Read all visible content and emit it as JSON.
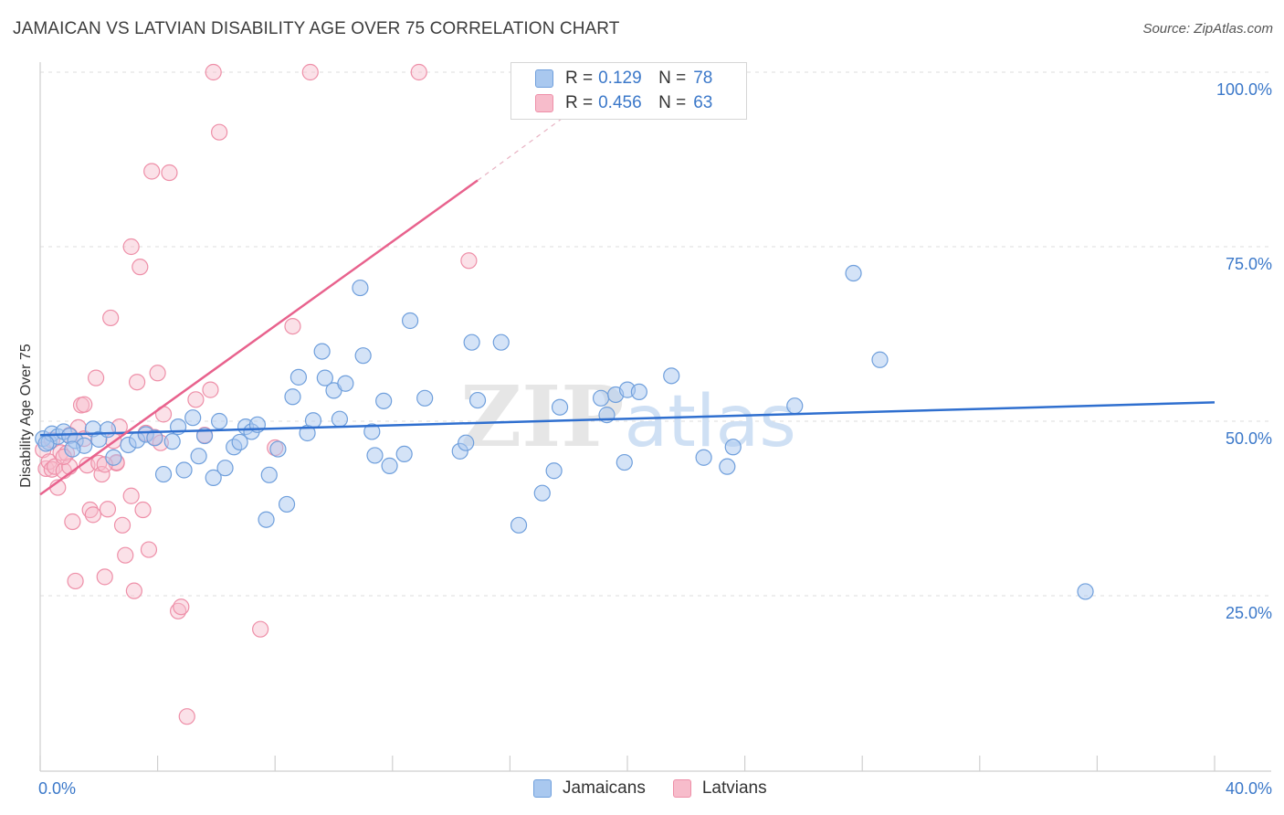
{
  "title": "JAMAICAN VS LATVIAN DISABILITY AGE OVER 75 CORRELATION CHART",
  "source": "Source: ZipAtlas.com",
  "watermark": "ZIPatlas",
  "legend": {
    "rows": [
      {
        "r_label": "R =",
        "r_value": "0.129",
        "n_label": "N =",
        "n_value": "78"
      },
      {
        "r_label": "R =",
        "r_value": "0.456",
        "n_label": "N =",
        "n_value": "63"
      }
    ]
  },
  "bottom_legend": [
    "Jamaicans",
    "Latvians"
  ],
  "colors": {
    "jamaicans_fill": "#a9c8ef",
    "jamaicans_stroke": "#6f9fdc",
    "jamaicans_line": "#2f6fcf",
    "latvians_fill": "#f7bccb",
    "latvians_stroke": "#ee8fa8",
    "latvians_line": "#e8628d",
    "tick_label": "#3b78c9",
    "grid": "#dcdcdc"
  },
  "chart_data": {
    "type": "scatter",
    "title": "JAMAICAN VS LATVIAN DISABILITY AGE OVER 75 CORRELATION CHART",
    "xlabel": "",
    "ylabel": "Disability Age Over 75",
    "xlim": [
      0,
      40
    ],
    "ylim": [
      0,
      105
    ],
    "x_tick_labels": [
      "0.0%",
      "40.0%"
    ],
    "y_ticks": [
      25,
      50,
      75,
      100
    ],
    "y_tick_labels": [
      "25.0%",
      "50.0%",
      "75.0%",
      "100.0%"
    ],
    "grid": true,
    "legend_position": "top-center",
    "series": [
      {
        "name": "Jamaicans",
        "r": 0.129,
        "n": 78,
        "trend": {
          "x": [
            0,
            40
          ],
          "y": [
            48.0,
            52.7
          ]
        },
        "points": [
          [
            0.1,
            47.5
          ],
          [
            0.3,
            47.0
          ],
          [
            0.4,
            48.2
          ],
          [
            0.6,
            47.8
          ],
          [
            0.8,
            48.5
          ],
          [
            1.0,
            47.9
          ],
          [
            1.2,
            47.2
          ],
          [
            1.5,
            46.5
          ],
          [
            1.8,
            48.9
          ],
          [
            2.0,
            47.4
          ],
          [
            2.3,
            48.8
          ],
          [
            2.5,
            44.8
          ],
          [
            3.0,
            46.6
          ],
          [
            3.3,
            47.3
          ],
          [
            3.6,
            48.1
          ],
          [
            3.9,
            47.6
          ],
          [
            4.2,
            42.4
          ],
          [
            4.5,
            47.1
          ],
          [
            4.7,
            49.2
          ],
          [
            4.9,
            43.0
          ],
          [
            5.2,
            50.5
          ],
          [
            5.4,
            45.0
          ],
          [
            5.6,
            47.9
          ],
          [
            5.9,
            41.9
          ],
          [
            6.1,
            50.0
          ],
          [
            6.3,
            43.3
          ],
          [
            6.6,
            46.3
          ],
          [
            6.8,
            47.0
          ],
          [
            7.0,
            49.2
          ],
          [
            7.2,
            48.5
          ],
          [
            7.4,
            49.5
          ],
          [
            7.7,
            35.9
          ],
          [
            7.8,
            42.3
          ],
          [
            8.1,
            46.0
          ],
          [
            8.4,
            38.1
          ],
          [
            8.6,
            53.5
          ],
          [
            8.8,
            56.3
          ],
          [
            9.1,
            48.3
          ],
          [
            9.3,
            50.1
          ],
          [
            9.6,
            60.0
          ],
          [
            9.7,
            56.2
          ],
          [
            10.0,
            54.4
          ],
          [
            10.2,
            50.3
          ],
          [
            10.4,
            55.4
          ],
          [
            10.9,
            69.1
          ],
          [
            11.0,
            59.4
          ],
          [
            11.3,
            48.5
          ],
          [
            11.4,
            45.1
          ],
          [
            11.7,
            52.9
          ],
          [
            11.9,
            43.6
          ],
          [
            12.4,
            45.3
          ],
          [
            12.6,
            64.4
          ],
          [
            13.1,
            53.3
          ],
          [
            14.3,
            45.7
          ],
          [
            14.5,
            46.9
          ],
          [
            14.7,
            61.3
          ],
          [
            14.9,
            53.0
          ],
          [
            15.7,
            61.3
          ],
          [
            16.3,
            35.1
          ],
          [
            17.1,
            39.7
          ],
          [
            17.5,
            42.9
          ],
          [
            17.7,
            52.0
          ],
          [
            19.1,
            53.3
          ],
          [
            19.3,
            50.9
          ],
          [
            19.6,
            53.8
          ],
          [
            19.9,
            44.1
          ],
          [
            20.0,
            54.5
          ],
          [
            20.4,
            54.2
          ],
          [
            21.5,
            56.5
          ],
          [
            22.6,
            44.8
          ],
          [
            23.4,
            43.5
          ],
          [
            23.6,
            46.3
          ],
          [
            25.7,
            52.2
          ],
          [
            27.7,
            71.2
          ],
          [
            28.6,
            58.8
          ],
          [
            35.6,
            25.6
          ],
          [
            0.2,
            46.8
          ],
          [
            1.1,
            46.0
          ]
        ]
      },
      {
        "name": "Latvians",
        "r": 0.456,
        "n": 63,
        "trend": {
          "x": [
            0,
            14.9
          ],
          "y": [
            39.5,
            84.5
          ]
        },
        "trend_dashed": {
          "x": [
            14.9,
            18.3
          ],
          "y": [
            84.5,
            95.0
          ]
        },
        "points": [
          [
            0.1,
            45.9
          ],
          [
            0.2,
            43.2
          ],
          [
            0.3,
            44.2
          ],
          [
            0.4,
            43.1
          ],
          [
            0.5,
            43.5
          ],
          [
            0.6,
            40.5
          ],
          [
            0.7,
            45.5
          ],
          [
            0.8,
            42.9
          ],
          [
            0.9,
            45.4
          ],
          [
            1.0,
            43.5
          ],
          [
            1.1,
            35.6
          ],
          [
            1.2,
            27.1
          ],
          [
            1.3,
            49.1
          ],
          [
            1.4,
            52.3
          ],
          [
            1.5,
            52.4
          ],
          [
            1.6,
            43.7
          ],
          [
            1.7,
            37.3
          ],
          [
            1.8,
            36.6
          ],
          [
            1.9,
            56.2
          ],
          [
            2.0,
            44.0
          ],
          [
            2.1,
            42.4
          ],
          [
            2.2,
            27.7
          ],
          [
            2.3,
            37.4
          ],
          [
            2.4,
            64.8
          ],
          [
            2.5,
            47.2
          ],
          [
            2.6,
            44.0
          ],
          [
            2.7,
            49.2
          ],
          [
            2.8,
            35.1
          ],
          [
            2.9,
            30.8
          ],
          [
            3.1,
            39.3
          ],
          [
            3.2,
            25.7
          ],
          [
            3.3,
            55.6
          ],
          [
            3.4,
            72.1
          ],
          [
            3.5,
            37.3
          ],
          [
            3.6,
            48.3
          ],
          [
            3.7,
            31.6
          ],
          [
            3.8,
            85.8
          ],
          [
            4.0,
            56.9
          ],
          [
            4.2,
            51.0
          ],
          [
            4.4,
            85.6
          ],
          [
            4.7,
            22.8
          ],
          [
            4.8,
            23.4
          ],
          [
            5.0,
            7.7
          ],
          [
            5.3,
            53.1
          ],
          [
            5.6,
            48.0
          ],
          [
            5.8,
            54.5
          ],
          [
            5.9,
            100.0
          ],
          [
            6.1,
            91.4
          ],
          [
            7.5,
            20.2
          ],
          [
            8.0,
            46.2
          ],
          [
            8.6,
            63.6
          ],
          [
            9.2,
            100.0
          ],
          [
            12.9,
            100.0
          ],
          [
            14.6,
            73.0
          ],
          [
            3.1,
            75.0
          ],
          [
            0.4,
            47.3
          ],
          [
            1.0,
            48.0
          ],
          [
            2.6,
            44.1
          ],
          [
            1.5,
            47.5
          ],
          [
            0.8,
            44.9
          ],
          [
            2.2,
            43.8
          ],
          [
            3.9,
            47.7
          ],
          [
            4.1,
            46.9
          ]
        ]
      }
    ]
  }
}
